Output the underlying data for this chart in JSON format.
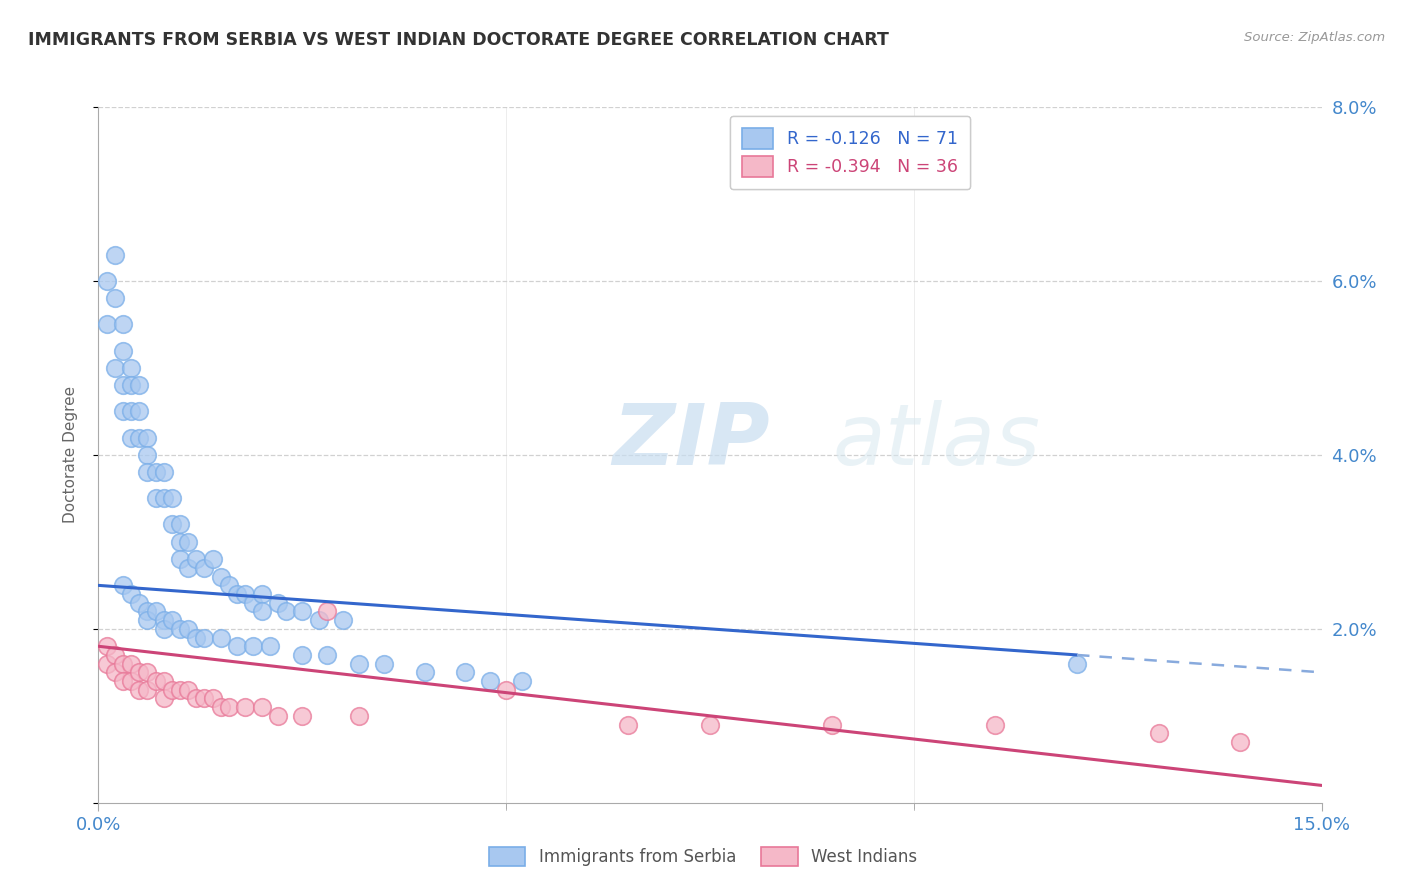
{
  "title": "IMMIGRANTS FROM SERBIA VS WEST INDIAN DOCTORATE DEGREE CORRELATION CHART",
  "source": "Source: ZipAtlas.com",
  "ylabel": "Doctorate Degree",
  "xlim": [
    0,
    0.15
  ],
  "ylim": [
    0,
    0.08
  ],
  "serbia_color": "#a8c8f0",
  "serbia_edge_color": "#7aaee8",
  "westindian_color": "#f5b8c8",
  "westindian_edge_color": "#e87898",
  "serbia_line_color": "#3366cc",
  "westindian_line_color": "#cc4477",
  "serbia_dash_color": "#88aadd",
  "serbia_R": -0.126,
  "serbia_N": 71,
  "westindian_R": -0.394,
  "westindian_N": 36,
  "watermark_zip": "ZIP",
  "watermark_atlas": "atlas",
  "legend_labels": [
    "Immigrants from Serbia",
    "West Indians"
  ],
  "grid_color": "#cccccc",
  "title_color": "#333333",
  "tick_color": "#4488cc",
  "background_color": "#ffffff",
  "serbia_line_y0": 0.025,
  "serbia_line_y1": 0.017,
  "westindian_line_y0": 0.018,
  "westindian_line_y1": 0.002,
  "serbia_x": [
    0.001,
    0.001,
    0.002,
    0.002,
    0.002,
    0.003,
    0.003,
    0.003,
    0.003,
    0.004,
    0.004,
    0.004,
    0.004,
    0.005,
    0.005,
    0.005,
    0.006,
    0.006,
    0.006,
    0.007,
    0.007,
    0.008,
    0.008,
    0.009,
    0.009,
    0.01,
    0.01,
    0.01,
    0.011,
    0.011,
    0.012,
    0.013,
    0.014,
    0.015,
    0.016,
    0.017,
    0.018,
    0.019,
    0.02,
    0.02,
    0.022,
    0.023,
    0.025,
    0.027,
    0.03,
    0.003,
    0.004,
    0.005,
    0.006,
    0.006,
    0.007,
    0.008,
    0.008,
    0.009,
    0.01,
    0.011,
    0.012,
    0.013,
    0.015,
    0.017,
    0.019,
    0.021,
    0.025,
    0.028,
    0.032,
    0.035,
    0.04,
    0.045,
    0.048,
    0.052,
    0.12
  ],
  "serbia_y": [
    0.06,
    0.055,
    0.063,
    0.058,
    0.05,
    0.055,
    0.052,
    0.048,
    0.045,
    0.05,
    0.048,
    0.045,
    0.042,
    0.048,
    0.045,
    0.042,
    0.042,
    0.04,
    0.038,
    0.038,
    0.035,
    0.038,
    0.035,
    0.035,
    0.032,
    0.032,
    0.03,
    0.028,
    0.03,
    0.027,
    0.028,
    0.027,
    0.028,
    0.026,
    0.025,
    0.024,
    0.024,
    0.023,
    0.024,
    0.022,
    0.023,
    0.022,
    0.022,
    0.021,
    0.021,
    0.025,
    0.024,
    0.023,
    0.022,
    0.021,
    0.022,
    0.021,
    0.02,
    0.021,
    0.02,
    0.02,
    0.019,
    0.019,
    0.019,
    0.018,
    0.018,
    0.018,
    0.017,
    0.017,
    0.016,
    0.016,
    0.015,
    0.015,
    0.014,
    0.014,
    0.016
  ],
  "westindian_x": [
    0.001,
    0.001,
    0.002,
    0.002,
    0.003,
    0.003,
    0.004,
    0.004,
    0.005,
    0.005,
    0.006,
    0.006,
    0.007,
    0.008,
    0.008,
    0.009,
    0.01,
    0.011,
    0.012,
    0.013,
    0.014,
    0.015,
    0.016,
    0.018,
    0.02,
    0.022,
    0.025,
    0.028,
    0.032,
    0.05,
    0.065,
    0.075,
    0.09,
    0.11,
    0.13,
    0.14
  ],
  "westindian_y": [
    0.018,
    0.016,
    0.017,
    0.015,
    0.016,
    0.014,
    0.016,
    0.014,
    0.015,
    0.013,
    0.015,
    0.013,
    0.014,
    0.014,
    0.012,
    0.013,
    0.013,
    0.013,
    0.012,
    0.012,
    0.012,
    0.011,
    0.011,
    0.011,
    0.011,
    0.01,
    0.01,
    0.022,
    0.01,
    0.013,
    0.009,
    0.009,
    0.009,
    0.009,
    0.008,
    0.007
  ]
}
